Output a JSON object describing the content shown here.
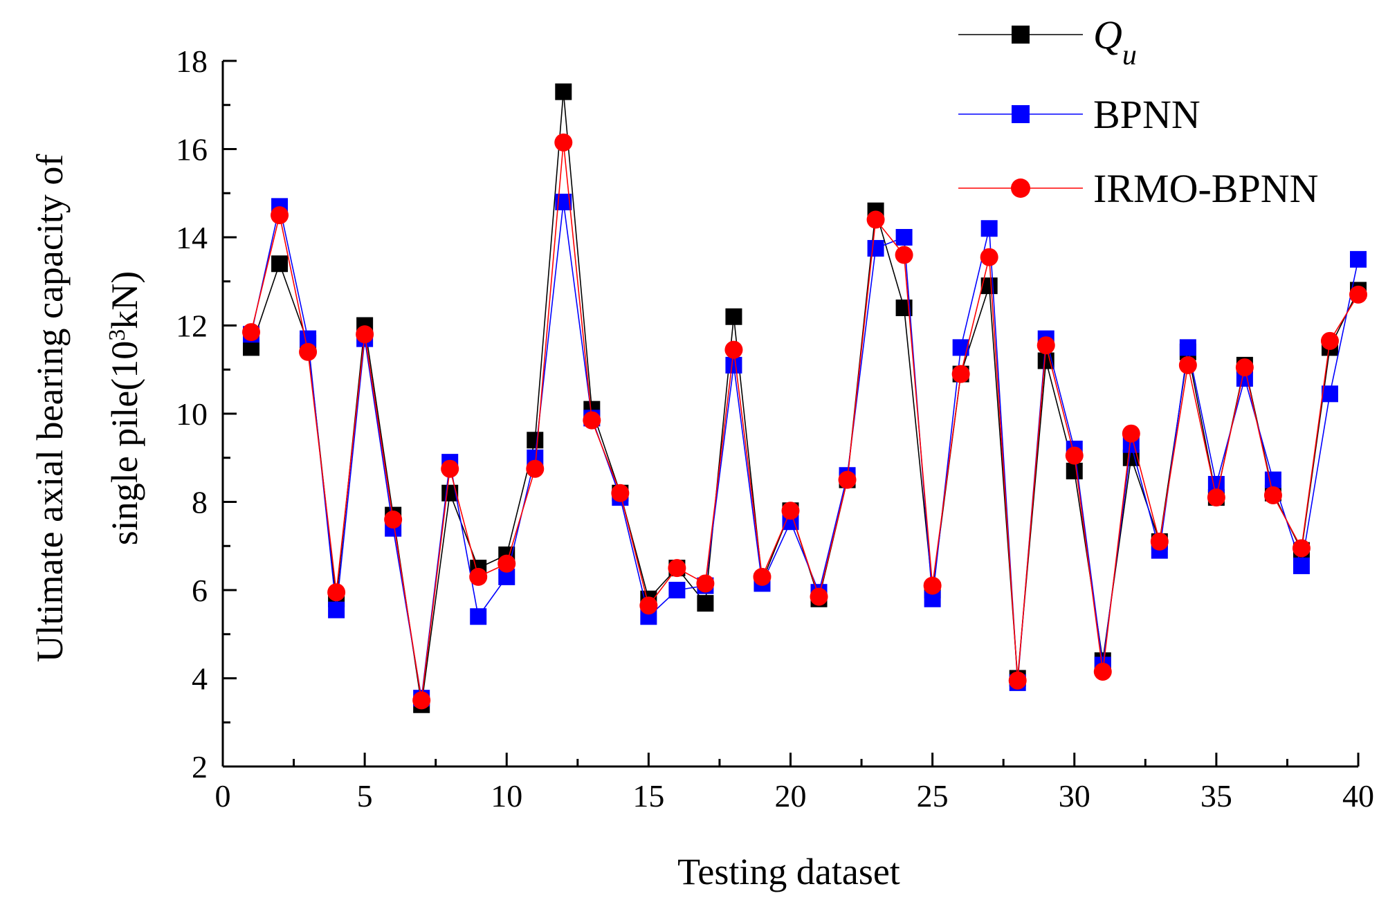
{
  "chart_data": {
    "type": "line",
    "title": "",
    "xlabel": "Testing dataset",
    "ylabel_line1": "Ultimate axial bearing capacity of",
    "ylabel_line2_prefix": "single pile(10",
    "ylabel_superscript": "3",
    "ylabel_line2_suffix": "kN)",
    "xlim": [
      0,
      40
    ],
    "ylim": [
      2,
      18
    ],
    "xticks": [
      0,
      5,
      10,
      15,
      20,
      25,
      30,
      35,
      40
    ],
    "yticks": [
      2,
      4,
      6,
      8,
      10,
      12,
      14,
      16,
      18
    ],
    "grid": false,
    "legend_position": "top-right",
    "x": [
      1,
      2,
      3,
      4,
      5,
      6,
      7,
      8,
      9,
      10,
      11,
      12,
      13,
      14,
      15,
      16,
      17,
      18,
      19,
      20,
      21,
      22,
      23,
      24,
      25,
      26,
      27,
      28,
      29,
      30,
      31,
      32,
      33,
      34,
      35,
      36,
      37,
      38,
      39,
      40
    ],
    "series": [
      {
        "name": "Q",
        "name_subscript": "u",
        "color": "#000000",
        "marker": "square",
        "values": [
          11.5,
          13.4,
          11.6,
          5.8,
          12.0,
          7.7,
          3.4,
          8.2,
          6.5,
          6.8,
          9.4,
          17.3,
          10.1,
          8.2,
          5.8,
          6.5,
          5.7,
          12.2,
          6.2,
          7.8,
          5.8,
          8.5,
          14.6,
          12.4,
          6.0,
          10.9,
          12.9,
          4.0,
          11.2,
          8.7,
          4.4,
          9.0,
          7.1,
          11.4,
          8.1,
          11.1,
          8.2,
          6.9,
          11.5,
          12.8
        ]
      },
      {
        "name": "BPNN",
        "name_subscript": "",
        "color": "#0000ff",
        "marker": "square",
        "values": [
          11.8,
          14.7,
          11.7,
          5.55,
          11.7,
          7.4,
          3.55,
          8.9,
          5.4,
          6.3,
          9.0,
          14.8,
          9.9,
          8.1,
          5.4,
          6.0,
          6.1,
          11.1,
          6.15,
          7.55,
          5.95,
          8.6,
          13.75,
          14.0,
          5.8,
          11.5,
          14.2,
          3.9,
          11.7,
          9.2,
          4.3,
          9.3,
          6.9,
          11.5,
          8.4,
          10.8,
          8.5,
          6.55,
          10.45,
          13.5
        ]
      },
      {
        "name": "IRMO-BPNN",
        "name_subscript": "",
        "color": "#ff0000",
        "marker": "circle",
        "values": [
          11.85,
          14.5,
          11.4,
          5.95,
          11.8,
          7.6,
          3.5,
          8.75,
          6.3,
          6.6,
          8.75,
          16.15,
          9.85,
          8.2,
          5.65,
          6.5,
          6.15,
          11.45,
          6.3,
          7.8,
          5.85,
          8.5,
          14.4,
          13.6,
          6.1,
          10.9,
          13.55,
          3.95,
          11.55,
          9.05,
          4.15,
          9.55,
          7.1,
          11.1,
          8.1,
          11.05,
          8.15,
          6.95,
          11.65,
          12.7
        ]
      }
    ]
  }
}
